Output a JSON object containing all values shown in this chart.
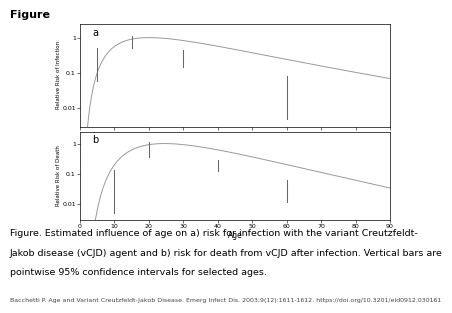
{
  "title": "Figure",
  "xlabel": "Age",
  "ylabel_a": "Relative Risk of Infection",
  "ylabel_b": "Relative Risk of Death",
  "label_a": "a",
  "label_b": "b",
  "x_ticks": [
    0,
    10,
    20,
    30,
    40,
    50,
    60,
    70,
    80,
    90
  ],
  "ylim_a": [
    0.003,
    2.5
  ],
  "ylim_b": [
    0.003,
    2.5
  ],
  "line_color": "#999999",
  "ci_color": "#666666",
  "curve_a": {
    "mu": 3.0,
    "sigma": 0.65
  },
  "curve_b": {
    "mu": 3.2,
    "sigma": 0.5
  },
  "ci_bars_a": [
    {
      "age": 5,
      "low": 0.06,
      "high": 0.5
    },
    {
      "age": 15,
      "low": 0.5,
      "high": 1.1
    },
    {
      "age": 30,
      "low": 0.15,
      "high": 0.45
    },
    {
      "age": 60,
      "low": 0.005,
      "high": 0.08
    }
  ],
  "ci_bars_b": [
    {
      "age": 10,
      "low": 0.005,
      "high": 0.13
    },
    {
      "age": 20,
      "low": 0.35,
      "high": 1.1
    },
    {
      "age": 40,
      "low": 0.12,
      "high": 0.28
    },
    {
      "age": 60,
      "low": 0.012,
      "high": 0.065
    }
  ],
  "caption_line1": "Figure. Estimated influence of age on a) risk for infection with the variant Creutzfeldt-",
  "caption_line2": "Jakob disease (vCJD) agent and b) risk for death from vCJD after infection. Vertical bars are",
  "caption_line3": "pointwise 95% confidence intervals for selected ages.",
  "citation": "Bacchetti P. Age and Variant Creutzfeldt-Jakob Disease. Emerg Infect Dis. 2003;9(12):1611-1612. https://doi.org/10.3201/eid0912.030161",
  "background_color": "#ffffff"
}
